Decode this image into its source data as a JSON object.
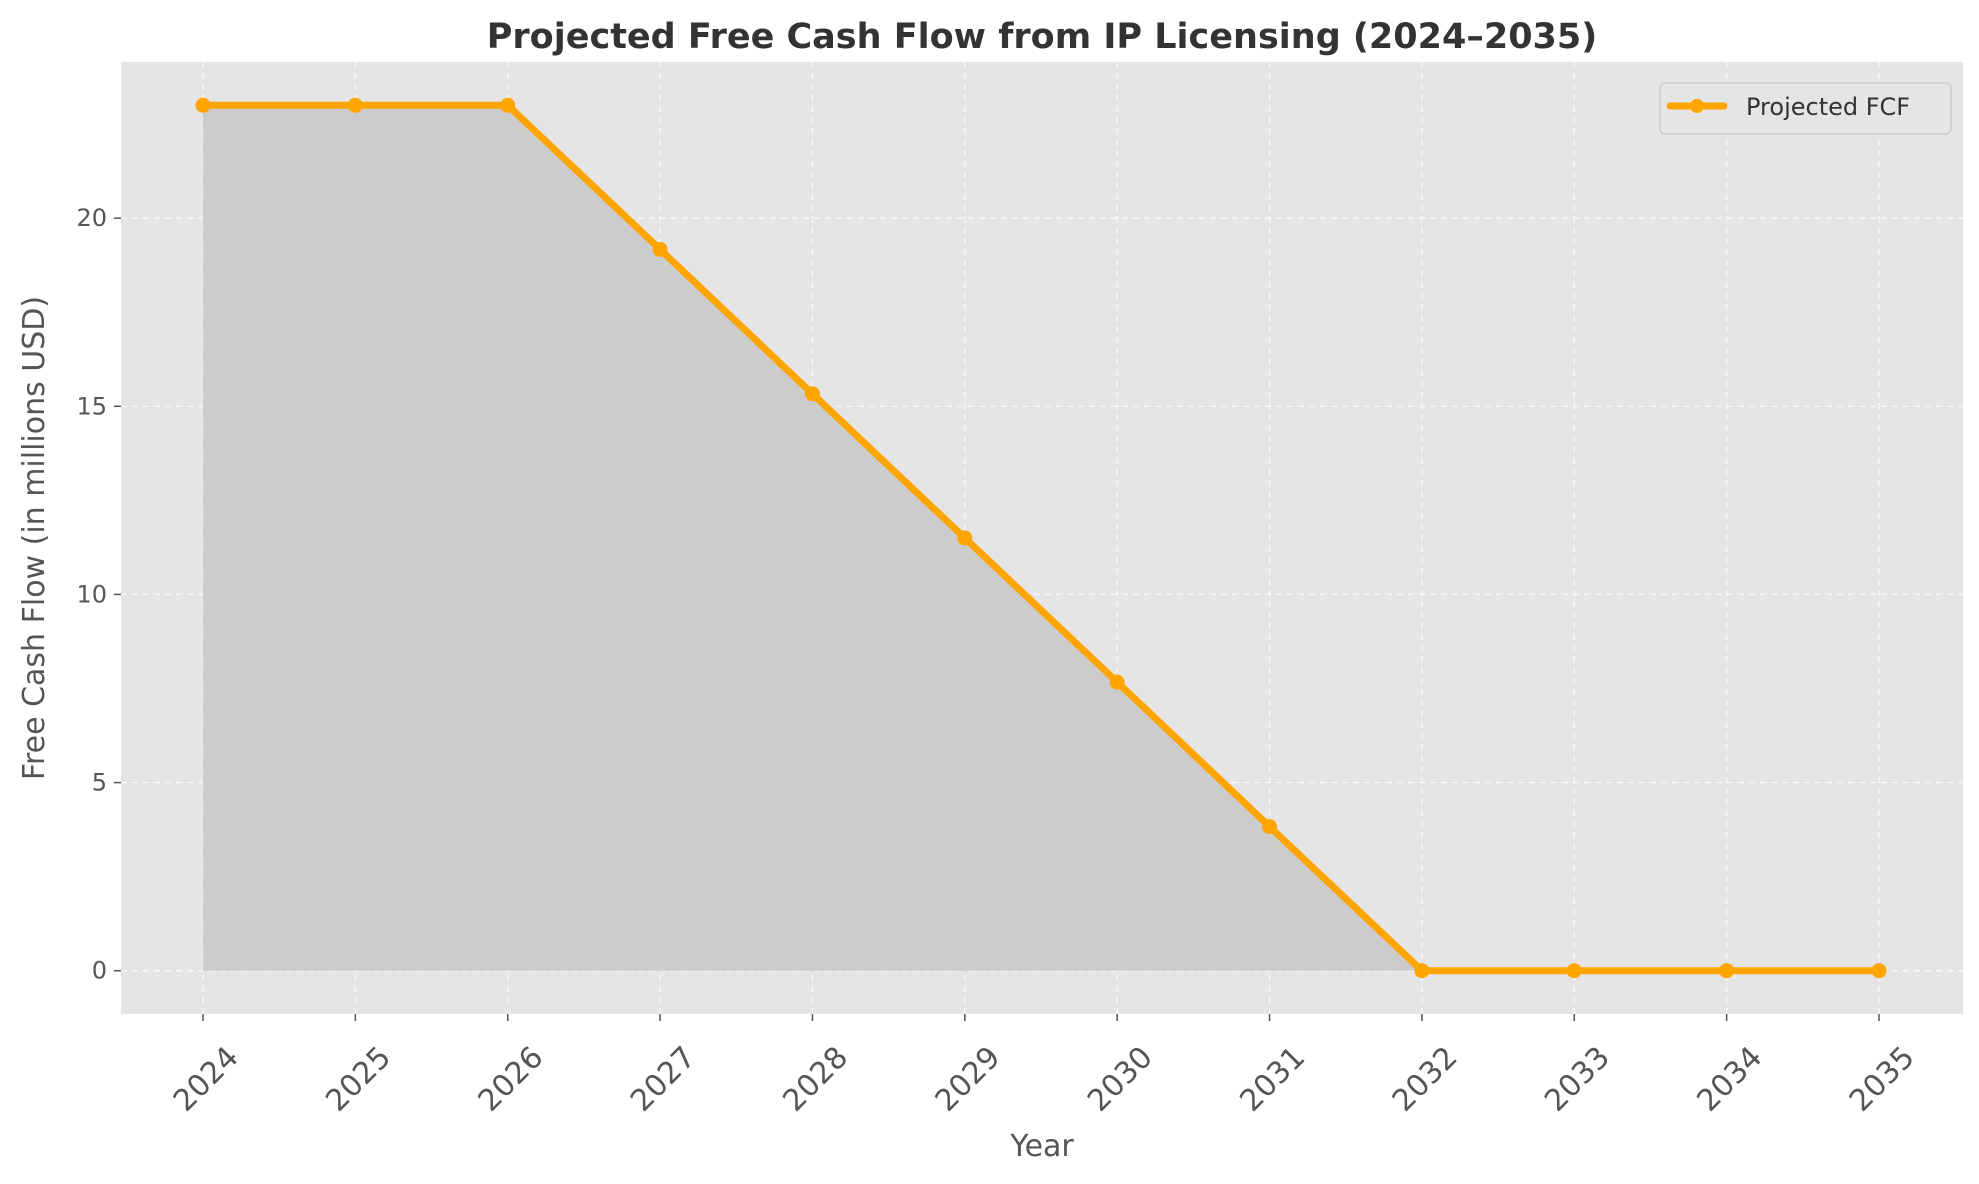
{
  "chart_data": {
    "type": "area",
    "title": "Projected Free Cash Flow from IP Licensing (2024–2035)",
    "xlabel": "Year",
    "ylabel": "Free Cash Flow (in millions USD)",
    "categories": [
      "2024",
      "2025",
      "2026",
      "2027",
      "2028",
      "2029",
      "2030",
      "2031",
      "2032",
      "2033",
      "2034",
      "2035"
    ],
    "series": [
      {
        "name": "Projected FCF",
        "values": [
          23.0,
          23.0,
          23.0,
          19.17,
          15.33,
          11.5,
          7.67,
          3.83,
          0.0,
          0.0,
          0.0,
          0.0
        ],
        "color": "#FFA500"
      }
    ],
    "yticks": [
      0,
      5,
      10,
      15,
      20
    ],
    "ylim": [
      -1.15,
      24.15
    ],
    "grid": true,
    "legend_position": "top-right",
    "fill_color": "#cccccc",
    "background_color": "#e5e5e5"
  }
}
